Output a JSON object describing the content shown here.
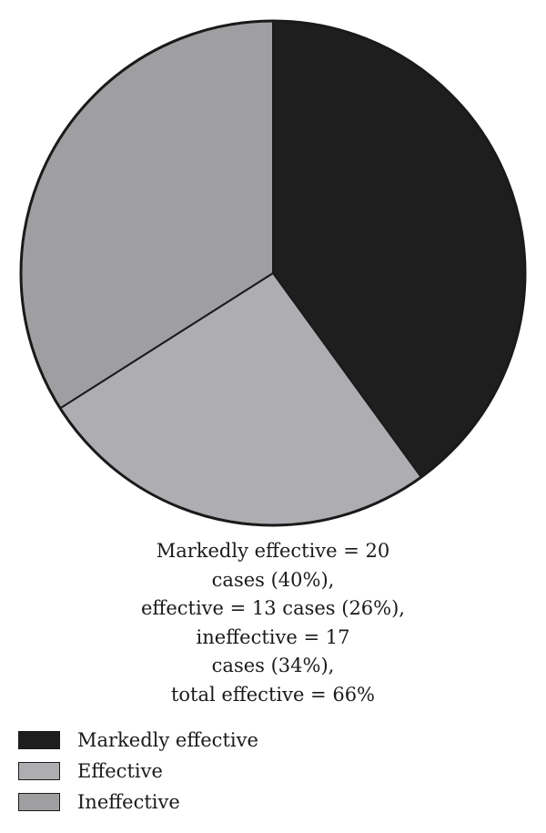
{
  "chart_data": {
    "type": "pie",
    "slices": [
      {
        "label": "Markedly effective",
        "value": 20,
        "percent": 40,
        "color": "#1e1e1e"
      },
      {
        "label": "Effective",
        "value": 13,
        "percent": 26,
        "color": "#aeaeb2"
      },
      {
        "label": "Ineffective",
        "value": 17,
        "percent": 34,
        "color": "#9f9fa2"
      }
    ],
    "start_angle_deg": 0,
    "direction": "clockwise",
    "annotation_lines": [
      "Markedly effective = 20",
      "cases (40%),",
      "effective = 13 cases (26%),",
      "ineffective = 17",
      "cases (34%),",
      "total effective = 66%"
    ],
    "legend": {
      "placement": "bottom-left",
      "entries": [
        "Markedly effective",
        "Effective",
        "Ineffective"
      ]
    }
  }
}
